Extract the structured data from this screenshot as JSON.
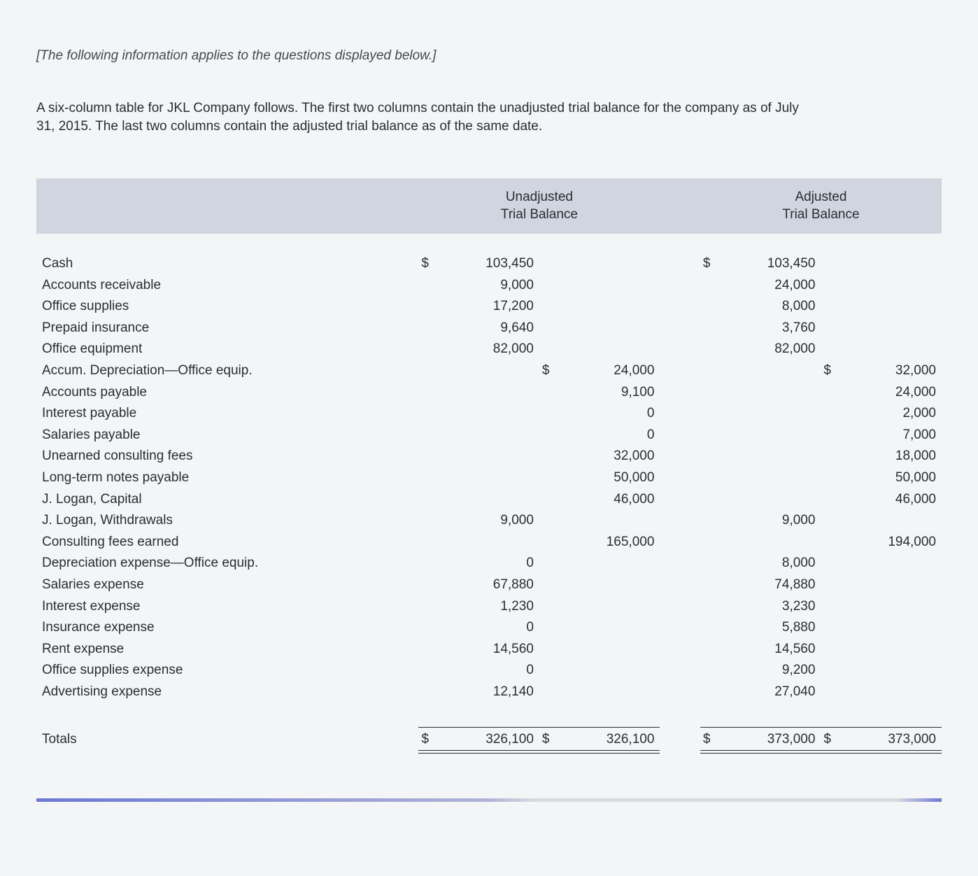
{
  "intro_italic": "[The following information applies to the questions displayed below.]",
  "intro_body": "A six-column table for JKL Company follows. The first two columns contain the unadjusted trial balance for the company as of July 31, 2015. The last two columns contain the adjusted trial balance as of the same date.",
  "headers": {
    "unadjusted": "Unadjusted\nTrial Balance",
    "adjusted": "Adjusted\nTrial Balance"
  },
  "columns": {
    "acct_width": "38%",
    "money_width": "12%",
    "gap_width": "4%"
  },
  "colors": {
    "header_bg": "#d0d5e0",
    "page_bg": "#f4f5f6",
    "text": "#2a2d33",
    "hr_accent": "#6d78d4",
    "hr_mid": "#d9dadf"
  },
  "rows": [
    {
      "acct": "Cash",
      "u_dr": "103,450",
      "u_dr_dollar": true,
      "u_cr": "",
      "a_dr": "103,450",
      "a_dr_dollar": true,
      "a_cr": ""
    },
    {
      "acct": "Accounts receivable",
      "u_dr": "9,000",
      "u_cr": "",
      "a_dr": "24,000",
      "a_cr": ""
    },
    {
      "acct": "Office supplies",
      "u_dr": "17,200",
      "u_cr": "",
      "a_dr": "8,000",
      "a_cr": ""
    },
    {
      "acct": "Prepaid insurance",
      "u_dr": "9,640",
      "u_cr": "",
      "a_dr": "3,760",
      "a_cr": ""
    },
    {
      "acct": "Office equipment",
      "u_dr": "82,000",
      "u_cr": "",
      "a_dr": "82,000",
      "a_cr": ""
    },
    {
      "acct": "Accum. Depreciation—Office equip.",
      "u_dr": "",
      "u_cr": "24,000",
      "u_cr_dollar": true,
      "a_dr": "",
      "a_cr": "32,000",
      "a_cr_dollar": true
    },
    {
      "acct": "Accounts payable",
      "u_dr": "",
      "u_cr": "9,100",
      "a_dr": "",
      "a_cr": "24,000"
    },
    {
      "acct": "Interest payable",
      "u_dr": "",
      "u_cr": "0",
      "a_dr": "",
      "a_cr": "2,000"
    },
    {
      "acct": "Salaries payable",
      "u_dr": "",
      "u_cr": "0",
      "a_dr": "",
      "a_cr": "7,000"
    },
    {
      "acct": "Unearned consulting fees",
      "u_dr": "",
      "u_cr": "32,000",
      "a_dr": "",
      "a_cr": "18,000"
    },
    {
      "acct": "Long-term notes payable",
      "u_dr": "",
      "u_cr": "50,000",
      "a_dr": "",
      "a_cr": "50,000"
    },
    {
      "acct": "J. Logan, Capital",
      "u_dr": "",
      "u_cr": "46,000",
      "a_dr": "",
      "a_cr": "46,000"
    },
    {
      "acct": "J. Logan, Withdrawals",
      "u_dr": "9,000",
      "u_cr": "",
      "a_dr": "9,000",
      "a_cr": ""
    },
    {
      "acct": "Consulting fees earned",
      "u_dr": "",
      "u_cr": "165,000",
      "a_dr": "",
      "a_cr": "194,000"
    },
    {
      "acct": "Depreciation expense—Office equip.",
      "u_dr": "0",
      "u_cr": "",
      "a_dr": "8,000",
      "a_cr": ""
    },
    {
      "acct": "Salaries expense",
      "u_dr": "67,880",
      "u_cr": "",
      "a_dr": "74,880",
      "a_cr": ""
    },
    {
      "acct": "Interest expense",
      "u_dr": "1,230",
      "u_cr": "",
      "a_dr": "3,230",
      "a_cr": ""
    },
    {
      "acct": "Insurance expense",
      "u_dr": "0",
      "u_cr": "",
      "a_dr": "5,880",
      "a_cr": ""
    },
    {
      "acct": "Rent expense",
      "u_dr": "14,560",
      "u_cr": "",
      "a_dr": "14,560",
      "a_cr": ""
    },
    {
      "acct": "Office supplies expense",
      "u_dr": "0",
      "u_cr": "",
      "a_dr": "9,200",
      "a_cr": ""
    },
    {
      "acct": "Advertising expense",
      "u_dr": "12,140",
      "u_cr": "",
      "a_dr": "27,040",
      "a_cr": ""
    }
  ],
  "totals": {
    "label": "Totals",
    "u_dr": "326,100",
    "u_dr_dollar": true,
    "u_cr": "326,100",
    "u_cr_dollar": true,
    "a_dr": "373,000",
    "a_dr_dollar": true,
    "a_cr": "373,000",
    "a_cr_dollar": true
  }
}
